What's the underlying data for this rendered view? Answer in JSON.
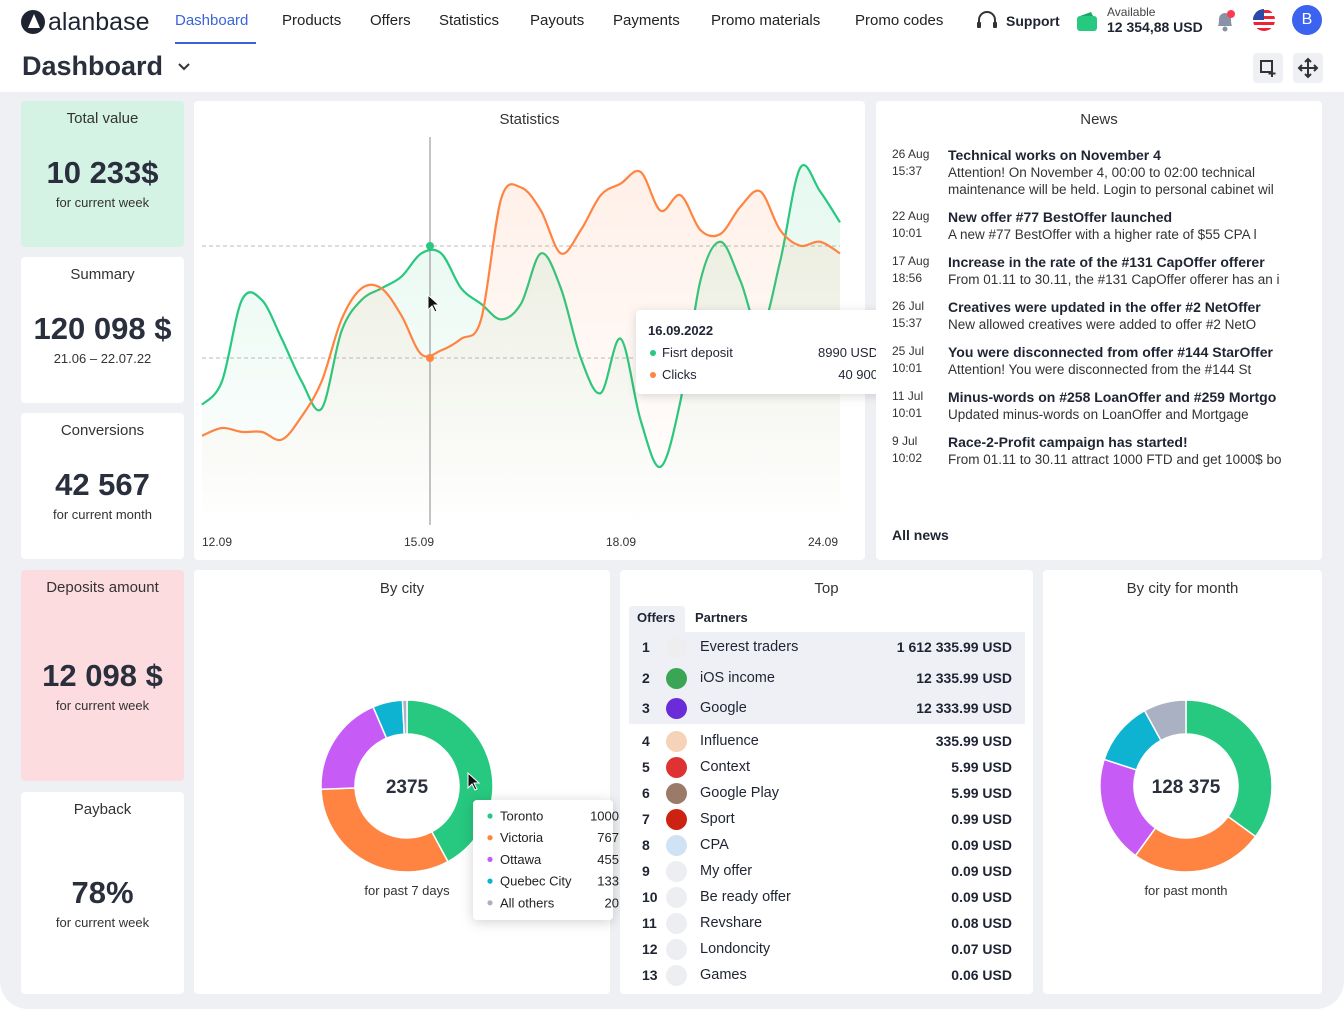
{
  "header": {
    "logo": "alanbase",
    "nav": [
      "Dashboard",
      "Products",
      "Offers",
      "Statistics",
      "Payouts",
      "Payments",
      "Promo materials",
      "Promo codes"
    ],
    "support": "Support",
    "balance_label": "Available",
    "balance": "12 354,88 USD",
    "avatar": "B"
  },
  "page_title": "Dashboard",
  "kpis": [
    {
      "title": "Total value",
      "value": "10 233$",
      "caption": "for current week"
    },
    {
      "title": "Summary",
      "value": "120 098 $",
      "caption": "21.06 – 22.07.22"
    },
    {
      "title": "Conversions",
      "value": "42 567",
      "caption": "for current month"
    },
    {
      "title": "Deposits amount",
      "value": "12 098 $",
      "caption": "for current week"
    },
    {
      "title": "Payback",
      "value": "78%",
      "caption": "for current week"
    }
  ],
  "statistics": {
    "title": "Statistics",
    "chart_data": {
      "type": "line",
      "x_labels": [
        "12.09",
        "15.09",
        "18.09",
        "24.09"
      ],
      "ylim": [
        0,
        100
      ],
      "series": [
        {
          "name": "Fisrt deposit",
          "color": "#27c87f",
          "values": [
            31,
            37,
            58,
            58,
            48,
            37,
            30,
            50,
            58,
            61,
            64,
            70,
            70,
            61,
            57,
            53,
            57,
            70,
            61,
            43,
            34,
            48,
            27,
            15,
            32,
            63,
            73,
            63,
            50,
            68,
            92,
            86,
            78
          ]
        },
        {
          "name": "Clicks",
          "color": "#ff8442",
          "values": [
            23,
            25,
            24,
            24,
            22,
            28,
            37,
            53,
            61,
            61,
            54,
            44,
            45,
            48,
            53,
            84,
            87,
            81,
            70,
            76,
            85,
            88,
            91,
            81,
            85,
            76,
            75,
            82,
            86,
            76,
            72,
            73,
            70
          ]
        }
      ],
      "tooltip": {
        "date": "16.09.2022",
        "values": [
          "8990 USD",
          "40 900"
        ]
      }
    }
  },
  "news": {
    "title": "News",
    "items": [
      {
        "date": "26 Aug",
        "time": "15:37",
        "title": "Technical works on November 4",
        "text": "Attention! On November 4, 00:00 to 02:00 technical maintenance will be held. Login to personal cabinet wil"
      },
      {
        "date": "22 Aug",
        "time": "10:01",
        "title": "New offer #77 BestOffer launched",
        "text": "A new #77 BestOffer with a higher rate of $55 CPA l"
      },
      {
        "date": "17 Aug",
        "time": "18:56",
        "title": "Increase in the rate of the #131 CapOffer offerer",
        "text": "From 01.11 to 30.11, the #131 CapOffer offerer has an i"
      },
      {
        "date": "26 Jul",
        "time": "15:37",
        "title": "Creatives were updated in the offer #2 NetOffer",
        "text": "New allowed creatives were added to offer #2 NetO"
      },
      {
        "date": "25 Jul",
        "time": "10:01",
        "title": "You were disconnected from offer #144 StarOffer",
        "text": "Attention! You were disconnected from the #144 St"
      },
      {
        "date": "11 Jul",
        "time": "10:01",
        "title": "Minus-words on #258 LoanOffer and #259 Mortgo",
        "text": "Updated minus-words on LoanOffer and Mortgage"
      },
      {
        "date": "9 Jul",
        "time": "10:02",
        "title": "Race-2-Profit campaign has started!",
        "text": "From 01.11 to 30.11 attract 1000 FTD and get 1000$ bo"
      }
    ],
    "all": "All news"
  },
  "by_city": {
    "title": "By city",
    "chart_data": {
      "type": "pie",
      "total": 2375,
      "caption": "for past 7 days",
      "categories": [
        "Toronto",
        "Victoria",
        "Ottawa",
        "Quebec City",
        "All others"
      ],
      "values": [
        1000,
        767,
        455,
        133,
        20
      ],
      "colors": [
        "#27c87f",
        "#ff8442",
        "#c65cf5",
        "#0fb3d2",
        "#a9b1c3"
      ]
    }
  },
  "top": {
    "title": "Top",
    "tabs": [
      "Offers",
      "Partners"
    ],
    "rows": [
      [
        "1",
        "Everest traders",
        "1 612 335.99 USD"
      ],
      [
        "2",
        "iOS income",
        "12 335.99 USD"
      ],
      [
        "3",
        "Google",
        "12 333.99 USD"
      ],
      [
        "4",
        "Influence",
        "335.99 USD"
      ],
      [
        "5",
        "Context",
        "5.99 USD"
      ],
      [
        "6",
        "Google Play",
        "5.99 USD"
      ],
      [
        "7",
        "Sport",
        "0.99 USD"
      ],
      [
        "8",
        "CPA",
        "0.09 USD"
      ],
      [
        "9",
        "My offer",
        "0.09 USD"
      ],
      [
        "10",
        "Be ready offer",
        "0.09 USD"
      ],
      [
        "11",
        "Revshare",
        "0.08 USD"
      ],
      [
        "12",
        "Londoncity",
        "0.07 USD"
      ],
      [
        "13",
        "Games",
        "0.06 USD"
      ]
    ]
  },
  "by_city_month": {
    "title": "By city for month",
    "chart_data": {
      "type": "pie",
      "total": "128 375",
      "caption": "for past month",
      "values": [
        35,
        25,
        20,
        12,
        8
      ],
      "colors": [
        "#27c87f",
        "#ff8442",
        "#c65cf5",
        "#0fb3d2",
        "#a9b1c3"
      ]
    }
  }
}
